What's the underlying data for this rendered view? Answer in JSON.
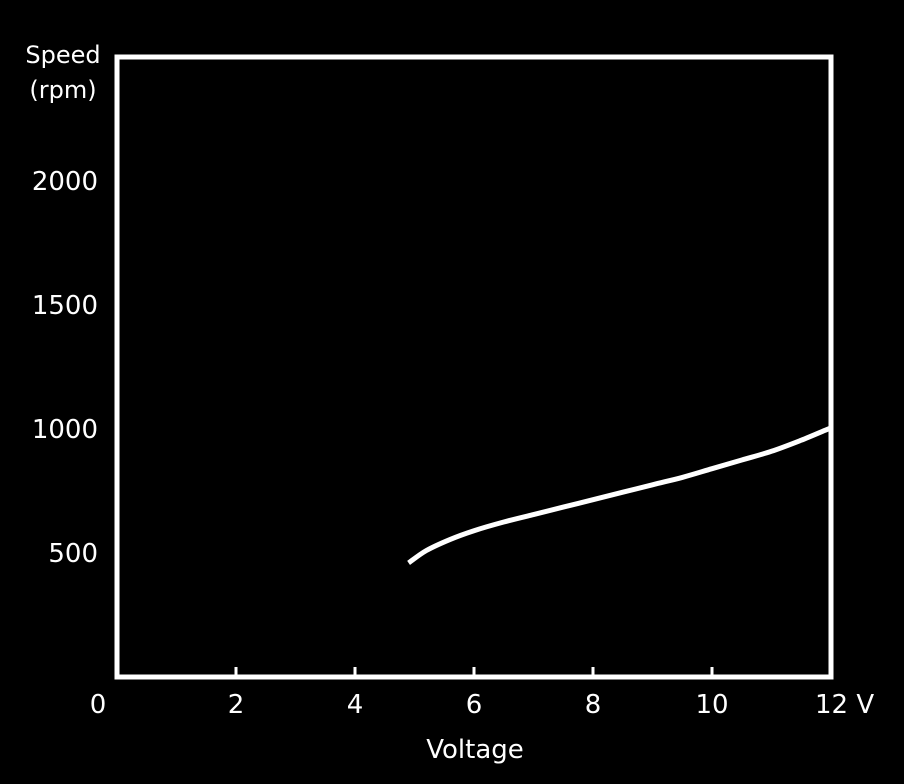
{
  "chart_data": {
    "type": "line",
    "title": "",
    "ylabel_line1": "Speed",
    "ylabel_line2": "(rpm)",
    "xlabel": "Voltage",
    "x_unit": "V",
    "xlim": [
      0,
      12
    ],
    "ylim": [
      0,
      2500
    ],
    "x_ticks": [
      {
        "value": 0,
        "label": "0"
      },
      {
        "value": 2,
        "label": "2"
      },
      {
        "value": 4,
        "label": "4"
      },
      {
        "value": 6,
        "label": "6"
      },
      {
        "value": 8,
        "label": "8"
      },
      {
        "value": 10,
        "label": "10"
      },
      {
        "value": 12,
        "label": "12 V"
      }
    ],
    "y_ticks": [
      {
        "value": 500,
        "label": "500"
      },
      {
        "value": 1000,
        "label": "1000"
      },
      {
        "value": 1500,
        "label": "1500"
      },
      {
        "value": 2000,
        "label": "2000"
      }
    ],
    "grid": "horizontal",
    "series": [
      {
        "color": "#ffffff",
        "x": [
          4.9,
          5.2,
          5.6,
          6.0,
          6.5,
          7.0,
          7.5,
          8.0,
          8.5,
          9.0,
          9.5,
          10.0,
          10.5,
          11.0,
          11.5,
          12.0
        ],
        "y": [
          460,
          510,
          555,
          590,
          625,
          655,
          685,
          715,
          745,
          775,
          805,
          840,
          875,
          910,
          955,
          1005
        ]
      }
    ]
  }
}
